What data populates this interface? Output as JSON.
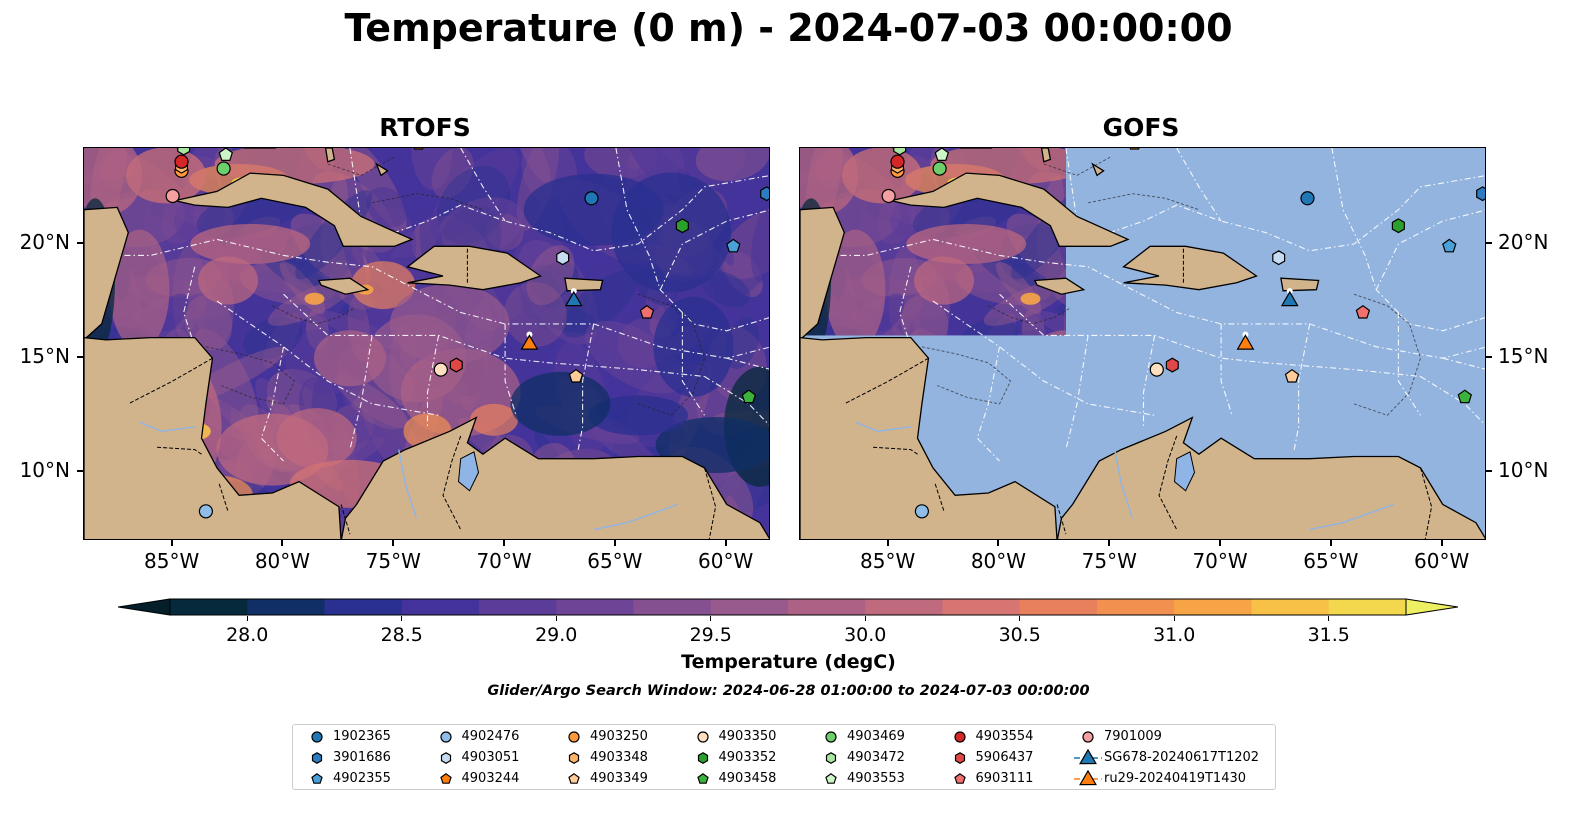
{
  "title": "Temperature (0 m) - 2024-07-03 00:00:00",
  "panels": [
    {
      "title": "RTOFS",
      "coverage": "full"
    },
    {
      "title": "GOFS",
      "coverage": "partial"
    }
  ],
  "lon_ticks": [
    "85°W",
    "80°W",
    "75°W",
    "70°W",
    "65°W",
    "60°W"
  ],
  "lat_ticks": [
    "20°N",
    "15°N",
    "10°N"
  ],
  "colorbar": {
    "ticks": [
      "28.0",
      "28.5",
      "29.0",
      "29.5",
      "30.0",
      "30.5",
      "31.0",
      "31.5"
    ],
    "label": "Temperature (degC)",
    "colors": [
      "#062a3b",
      "#0f2f66",
      "#2a3090",
      "#44339a",
      "#5b3c99",
      "#6e4596",
      "#84508f",
      "#985a8c",
      "#ad6285",
      "#c06a7d",
      "#d67572",
      "#e8805e",
      "#f29050",
      "#f7a446",
      "#f7c148",
      "#f3d84e"
    ],
    "over_color": "#eef063",
    "under_color": "#051f2a"
  },
  "search_window": "Glider/Argo Search Window: 2024-06-28 01:00:00 to 2024-07-03 00:00:00",
  "legend": [
    {
      "label": "1902365",
      "marker": "circle",
      "color": "#1f77b4"
    },
    {
      "label": "3901686",
      "marker": "hexagon",
      "color": "#2b7cc0"
    },
    {
      "label": "4902355",
      "marker": "pentagon",
      "color": "#4aa0d8"
    },
    {
      "label": "4902476",
      "marker": "circle",
      "color": "#8fbde8"
    },
    {
      "label": "4903051",
      "marker": "hexagon",
      "color": "#c6dcf2"
    },
    {
      "label": "4903244",
      "marker": "pentagon",
      "color": "#ff7f0e"
    },
    {
      "label": "4903250",
      "marker": "circle",
      "color": "#ff9a3c"
    },
    {
      "label": "4903348",
      "marker": "hexagon",
      "color": "#ffb46b"
    },
    {
      "label": "4903349",
      "marker": "pentagon",
      "color": "#ffcc99"
    },
    {
      "label": "4903350",
      "marker": "circle",
      "color": "#ffdfc0"
    },
    {
      "label": "4903352",
      "marker": "hexagon",
      "color": "#2ca02c"
    },
    {
      "label": "4903458",
      "marker": "pentagon",
      "color": "#3cb43c"
    },
    {
      "label": "4903469",
      "marker": "circle",
      "color": "#6ccf6c"
    },
    {
      "label": "4903472",
      "marker": "hexagon",
      "color": "#a8e6a0"
    },
    {
      "label": "4903553",
      "marker": "pentagon",
      "color": "#cdf5c8"
    },
    {
      "label": "4903554",
      "marker": "circle",
      "color": "#d62728"
    },
    {
      "label": "5906437",
      "marker": "hexagon",
      "color": "#e04848"
    },
    {
      "label": "6903111",
      "marker": "pentagon",
      "color": "#f07070"
    },
    {
      "label": "7901009",
      "marker": "circle",
      "color": "#f4a0a0"
    },
    {
      "label": "SG678-20240617T1202",
      "marker": "triangle",
      "color": "#1f77b4"
    },
    {
      "label": "ru29-20240419T1430",
      "marker": "triangle",
      "color": "#ff7f0e"
    }
  ],
  "map_data": {
    "extent": {
      "lon": [
        -89,
        -58
      ],
      "lat": [
        7,
        24.2
      ]
    },
    "gofs_model_extent": {
      "lon": [
        -89,
        -77
      ],
      "lat": [
        16,
        24.2
      ]
    },
    "colors": {
      "land": "#d2b48c",
      "gofs_empty": "#94b4e0",
      "contour": "#ffffff",
      "border": "#000000",
      "water_inland": "#8fb4e6"
    },
    "floats": [
      {
        "id": "1902365",
        "marker": "circle",
        "color": "#1f77b4",
        "lon": -66.1,
        "lat": 22.0
      },
      {
        "id": "3901686",
        "marker": "hexagon",
        "color": "#2b7cc0",
        "lon": -58.2,
        "lat": 22.2
      },
      {
        "id": "4902355",
        "marker": "pentagon",
        "color": "#4aa0d8",
        "lon": -59.7,
        "lat": 19.9
      },
      {
        "id": "4902476",
        "marker": "circle",
        "color": "#8fbde8",
        "lon": -83.5,
        "lat": 8.3
      },
      {
        "id": "4903051",
        "marker": "hexagon",
        "color": "#c6dcf2",
        "lon": -67.4,
        "lat": 19.4
      },
      {
        "id": "4903244",
        "marker": "pentagon",
        "color": "#ff7f0e",
        "lon": -73.9,
        "lat": 24.4
      },
      {
        "id": "4903250",
        "marker": "circle",
        "color": "#ff9a3c",
        "lon": -84.6,
        "lat": 23.2
      },
      {
        "id": "4903348",
        "marker": "hexagon",
        "color": "#ffb46b",
        "lon": -84.6,
        "lat": 23.4
      },
      {
        "id": "4903349",
        "marker": "pentagon",
        "color": "#ffcc99",
        "lon": -66.8,
        "lat": 14.2
      },
      {
        "id": "4903350",
        "marker": "circle",
        "color": "#ffdfc0",
        "lon": -72.9,
        "lat": 14.5
      },
      {
        "id": "4903352",
        "marker": "hexagon",
        "color": "#2ca02c",
        "lon": -62.0,
        "lat": 20.8
      },
      {
        "id": "4903458",
        "marker": "pentagon",
        "color": "#3cb43c",
        "lon": -59.0,
        "lat": 13.3
      },
      {
        "id": "4903469",
        "marker": "circle",
        "color": "#6ccf6c",
        "lon": -82.7,
        "lat": 23.3
      },
      {
        "id": "4903472",
        "marker": "hexagon",
        "color": "#a8e6a0",
        "lon": -84.5,
        "lat": 24.2
      },
      {
        "id": "4903553",
        "marker": "pentagon",
        "color": "#cdf5c8",
        "lon": -82.6,
        "lat": 23.9
      },
      {
        "id": "4903554",
        "marker": "circle",
        "color": "#d62728",
        "lon": -84.6,
        "lat": 23.6
      },
      {
        "id": "5906437",
        "marker": "hexagon",
        "color": "#e04848",
        "lon": -72.2,
        "lat": 14.7
      },
      {
        "id": "6903111",
        "marker": "pentagon",
        "color": "#f07070",
        "lon": -63.6,
        "lat": 17.0
      },
      {
        "id": "7901009",
        "marker": "circle",
        "color": "#f4a0a0",
        "lon": -85.0,
        "lat": 22.1
      },
      {
        "id": "SG678-20240617T1202",
        "marker": "triangle",
        "color": "#1f77b4",
        "lon": -66.9,
        "lat": 17.5
      },
      {
        "id": "ru29-20240419T1430",
        "marker": "triangle",
        "color": "#ff7f0e",
        "lon": -68.9,
        "lat": 15.6
      }
    ]
  }
}
